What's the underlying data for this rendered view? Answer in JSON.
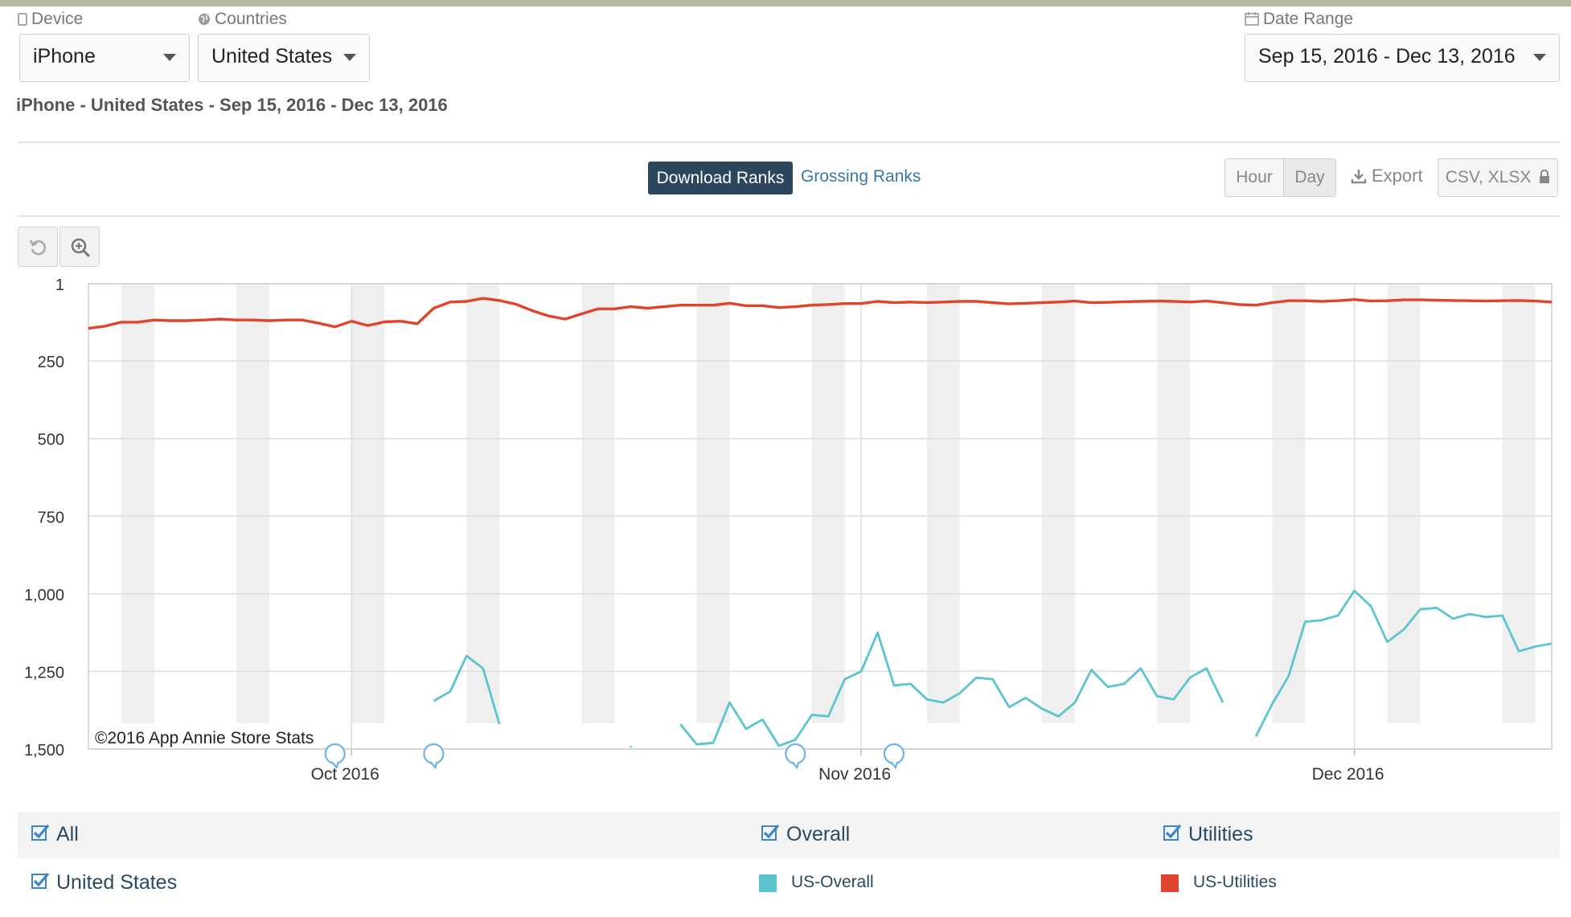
{
  "filters": {
    "device": {
      "label": "Device",
      "value": "iPhone"
    },
    "countries": {
      "label": "Countries",
      "value": "United States"
    },
    "date_range": {
      "label": "Date Range",
      "value": "Sep 15, 2016 - Dec 13, 2016"
    }
  },
  "subtitle": "iPhone - United States - Sep 15, 2016 - Dec 13, 2016",
  "tabs": {
    "download": "Download Ranks",
    "grossing": "Grossing Ranks"
  },
  "granularity": {
    "hour": "Hour",
    "day": "Day"
  },
  "export": {
    "label": "Export",
    "formats": "CSV, XLSX"
  },
  "legend": {
    "all": "All",
    "overall": "Overall",
    "utilities": "Utilities",
    "country": "United States",
    "series_overall": "US-Overall",
    "series_utilities": "US-Utilities"
  },
  "colors": {
    "overall": "#5bc4cf",
    "utilities": "#e0442c",
    "accent": "#2c475d"
  },
  "chart_data": {
    "type": "line",
    "x_range": [
      "2016-09-15",
      "2016-12-13"
    ],
    "y_range": [
      1,
      1500
    ],
    "y_reversed": true,
    "yticks": [
      1,
      250,
      500,
      750,
      1000,
      1250,
      1500
    ],
    "ytick_labels": [
      "1",
      "250",
      "500",
      "750",
      "1,000",
      "1,250",
      "1,500"
    ],
    "xticks": [
      "2016-10-01",
      "2016-11-01",
      "2016-12-01"
    ],
    "xtick_labels": [
      "Oct 2016",
      "Nov 2016",
      "Dec 2016"
    ],
    "weekend_bands": true,
    "grid": true,
    "watermark": "©2016 App Annie Store Stats",
    "annotation_dates": [
      "2016-09-30",
      "2016-10-06",
      "2016-10-28",
      "2016-11-03"
    ],
    "series": [
      {
        "name": "US-Utilities",
        "color": "#e0442c",
        "points": [
          [
            "2016-09-15",
            145
          ],
          [
            "2016-09-16",
            138
          ],
          [
            "2016-09-17",
            125
          ],
          [
            "2016-09-18",
            125
          ],
          [
            "2016-09-19",
            118
          ],
          [
            "2016-09-20",
            120
          ],
          [
            "2016-09-21",
            120
          ],
          [
            "2016-09-22",
            118
          ],
          [
            "2016-09-23",
            115
          ],
          [
            "2016-09-24",
            118
          ],
          [
            "2016-09-25",
            118
          ],
          [
            "2016-09-26",
            120
          ],
          [
            "2016-09-27",
            118
          ],
          [
            "2016-09-28",
            118
          ],
          [
            "2016-09-29",
            128
          ],
          [
            "2016-09-30",
            140
          ],
          [
            "2016-10-01",
            122
          ],
          [
            "2016-10-02",
            136
          ],
          [
            "2016-10-03",
            124
          ],
          [
            "2016-10-04",
            122
          ],
          [
            "2016-10-05",
            130
          ],
          [
            "2016-10-06",
            80
          ],
          [
            "2016-10-07",
            60
          ],
          [
            "2016-10-08",
            58
          ],
          [
            "2016-10-09",
            48
          ],
          [
            "2016-10-10",
            55
          ],
          [
            "2016-10-11",
            67
          ],
          [
            "2016-10-12",
            88
          ],
          [
            "2016-10-13",
            105
          ],
          [
            "2016-10-14",
            115
          ],
          [
            "2016-10-15",
            98
          ],
          [
            "2016-10-16",
            82
          ],
          [
            "2016-10-17",
            82
          ],
          [
            "2016-10-18",
            75
          ],
          [
            "2016-10-19",
            80
          ],
          [
            "2016-10-20",
            75
          ],
          [
            "2016-10-21",
            70
          ],
          [
            "2016-10-22",
            70
          ],
          [
            "2016-10-23",
            70
          ],
          [
            "2016-10-24",
            64
          ],
          [
            "2016-10-25",
            72
          ],
          [
            "2016-10-26",
            72
          ],
          [
            "2016-10-27",
            78
          ],
          [
            "2016-10-28",
            75
          ],
          [
            "2016-10-29",
            70
          ],
          [
            "2016-10-30",
            68
          ],
          [
            "2016-10-31",
            65
          ],
          [
            "2016-11-01",
            65
          ],
          [
            "2016-11-02",
            58
          ],
          [
            "2016-11-03",
            62
          ],
          [
            "2016-11-04",
            60
          ],
          [
            "2016-11-05",
            62
          ],
          [
            "2016-11-06",
            60
          ],
          [
            "2016-11-07",
            58
          ],
          [
            "2016-11-08",
            58
          ],
          [
            "2016-11-09",
            62
          ],
          [
            "2016-11-10",
            66
          ],
          [
            "2016-11-11",
            64
          ],
          [
            "2016-11-12",
            62
          ],
          [
            "2016-11-13",
            60
          ],
          [
            "2016-11-14",
            57
          ],
          [
            "2016-11-15",
            62
          ],
          [
            "2016-11-16",
            61
          ],
          [
            "2016-11-17",
            59
          ],
          [
            "2016-11-18",
            58
          ],
          [
            "2016-11-19",
            57
          ],
          [
            "2016-11-20",
            58
          ],
          [
            "2016-11-21",
            60
          ],
          [
            "2016-11-22",
            57
          ],
          [
            "2016-11-23",
            62
          ],
          [
            "2016-11-24",
            68
          ],
          [
            "2016-11-25",
            70
          ],
          [
            "2016-11-26",
            62
          ],
          [
            "2016-11-27",
            56
          ],
          [
            "2016-11-28",
            56
          ],
          [
            "2016-11-29",
            58
          ],
          [
            "2016-11-30",
            56
          ],
          [
            "2016-12-01",
            52
          ],
          [
            "2016-12-02",
            57
          ],
          [
            "2016-12-03",
            56
          ],
          [
            "2016-12-04",
            53
          ],
          [
            "2016-12-05",
            53
          ],
          [
            "2016-12-06",
            54
          ],
          [
            "2016-12-07",
            55
          ],
          [
            "2016-12-08",
            56
          ],
          [
            "2016-12-09",
            57
          ],
          [
            "2016-12-10",
            56
          ],
          [
            "2016-12-11",
            55
          ],
          [
            "2016-12-12",
            57
          ],
          [
            "2016-12-13",
            60
          ]
        ]
      },
      {
        "name": "US-Overall",
        "color": "#5bc4cf",
        "segments": [
          [
            [
              "2016-10-06",
              1345
            ],
            [
              "2016-10-07",
              1315
            ],
            [
              "2016-10-08",
              1200
            ],
            [
              "2016-10-09",
              1240
            ],
            [
              "2016-10-10",
              1420
            ]
          ],
          [
            [
              "2016-10-18",
              1490
            ],
            [
              "2016-10-18",
              1495
            ]
          ],
          [
            [
              "2016-10-21",
              1420
            ],
            [
              "2016-10-22",
              1485
            ],
            [
              "2016-10-23",
              1480
            ],
            [
              "2016-10-24",
              1350
            ],
            [
              "2016-10-25",
              1435
            ],
            [
              "2016-10-26",
              1405
            ],
            [
              "2016-10-27",
              1490
            ],
            [
              "2016-10-28",
              1470
            ],
            [
              "2016-10-29",
              1390
            ],
            [
              "2016-10-30",
              1395
            ],
            [
              "2016-10-31",
              1275
            ],
            [
              "2016-11-01",
              1250
            ],
            [
              "2016-11-02",
              1125
            ],
            [
              "2016-11-03",
              1295
            ],
            [
              "2016-11-04",
              1290
            ],
            [
              "2016-11-05",
              1340
            ],
            [
              "2016-11-06",
              1350
            ],
            [
              "2016-11-07",
              1320
            ],
            [
              "2016-11-08",
              1270
            ],
            [
              "2016-11-09",
              1275
            ],
            [
              "2016-11-10",
              1365
            ],
            [
              "2016-11-11",
              1335
            ],
            [
              "2016-11-12",
              1370
            ],
            [
              "2016-11-13",
              1395
            ],
            [
              "2016-11-14",
              1350
            ],
            [
              "2016-11-15",
              1245
            ],
            [
              "2016-11-16",
              1300
            ],
            [
              "2016-11-17",
              1290
            ],
            [
              "2016-11-18",
              1240
            ],
            [
              "2016-11-19",
              1330
            ],
            [
              "2016-11-20",
              1340
            ],
            [
              "2016-11-21",
              1270
            ],
            [
              "2016-11-22",
              1240
            ],
            [
              "2016-11-23",
              1350
            ]
          ],
          [
            [
              "2016-11-25",
              1460
            ],
            [
              "2016-11-26",
              1355
            ],
            [
              "2016-11-27",
              1265
            ],
            [
              "2016-11-28",
              1090
            ],
            [
              "2016-11-29",
              1085
            ],
            [
              "2016-11-30",
              1070
            ],
            [
              "2016-12-01",
              990
            ],
            [
              "2016-12-02",
              1040
            ],
            [
              "2016-12-03",
              1155
            ],
            [
              "2016-12-04",
              1115
            ],
            [
              "2016-12-05",
              1050
            ],
            [
              "2016-12-06",
              1045
            ],
            [
              "2016-12-07",
              1080
            ],
            [
              "2016-12-08",
              1065
            ],
            [
              "2016-12-09",
              1075
            ],
            [
              "2016-12-10",
              1070
            ],
            [
              "2016-12-11",
              1185
            ],
            [
              "2016-12-12",
              1170
            ],
            [
              "2016-12-13",
              1160
            ]
          ]
        ]
      }
    ]
  }
}
